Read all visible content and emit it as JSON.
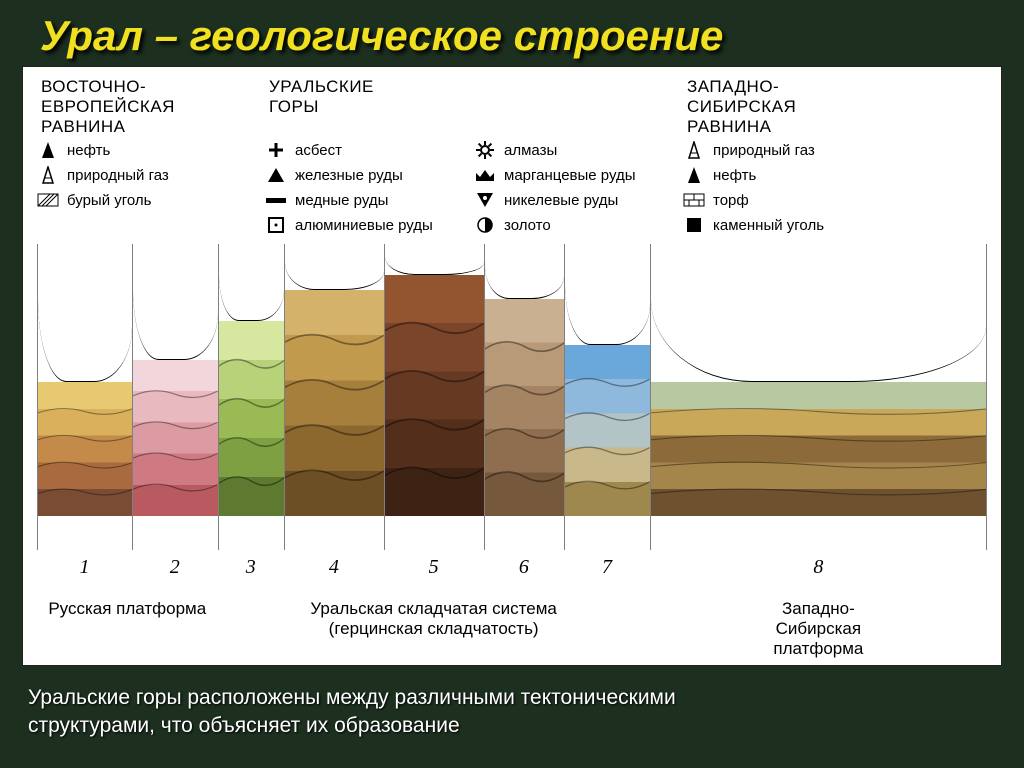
{
  "title": "Урал – геологическое строение",
  "headers": {
    "left": "ВОСТОЧНО-\nЕВРОПЕЙСКАЯ\nРАВНИНА",
    "center": "УРАЛЬСКИЕ\nГОРЫ",
    "right": "ЗАПАДНО-\nСИБИРСКАЯ\nРАВНИНА"
  },
  "legend": {
    "col1": [
      {
        "icon": "oil-drop",
        "label": "нефть"
      },
      {
        "icon": "gas-tower",
        "label": "природный газ"
      },
      {
        "icon": "hatched-sq",
        "label": "бурый уголь"
      }
    ],
    "col2": [
      {
        "icon": "plus",
        "label": "асбест"
      },
      {
        "icon": "solid-tri",
        "label": "железные руды"
      },
      {
        "icon": "bar",
        "label": "медные руды"
      },
      {
        "icon": "open-sq",
        "label": "алюминиевые руды"
      }
    ],
    "col3": [
      {
        "icon": "gear",
        "label": "алмазы"
      },
      {
        "icon": "crown",
        "label": "марганцевые руды"
      },
      {
        "icon": "down-tri",
        "label": "никелевые руды"
      },
      {
        "icon": "half-circle",
        "label": "золото"
      }
    ],
    "col4": [
      {
        "icon": "gas-tower",
        "label": "природный газ"
      },
      {
        "icon": "oil-drop",
        "label": "нефть"
      },
      {
        "icon": "bricks",
        "label": "торф"
      },
      {
        "icon": "solid-sq",
        "label": "каменный уголь"
      }
    ]
  },
  "sections": [
    {
      "id": 1,
      "width_pct": 10,
      "top_pct": 45,
      "colors": [
        "#e7c972",
        "#d9b05b",
        "#c48a4a",
        "#a86a3e",
        "#7a4c33"
      ]
    },
    {
      "id": 2,
      "width_pct": 9,
      "top_pct": 38,
      "colors": [
        "#f2d6db",
        "#e8b9bf",
        "#dc9aa2",
        "#cf7a83",
        "#b85a60"
      ]
    },
    {
      "id": 3,
      "width_pct": 7,
      "top_pct": 25,
      "colors": [
        "#d6e8a0",
        "#b8d27a",
        "#99ba55",
        "#7ea042",
        "#5d7a30"
      ]
    },
    {
      "id": 4,
      "width_pct": 10.5,
      "top_pct": 15,
      "colors": [
        "#d4b26a",
        "#c19a4e",
        "#a77f3c",
        "#8c682f",
        "#6c4f24"
      ]
    },
    {
      "id": 5,
      "width_pct": 10.5,
      "top_pct": 10,
      "colors": [
        "#93552f",
        "#7a4528",
        "#663922",
        "#522e1b",
        "#3e2314"
      ]
    },
    {
      "id": 6,
      "width_pct": 8.5,
      "top_pct": 18,
      "colors": [
        "#c9b090",
        "#b89a78",
        "#a58463",
        "#8f6e4f",
        "#76583d"
      ]
    },
    {
      "id": 7,
      "width_pct": 9,
      "top_pct": 33,
      "colors": [
        "#6aa8dc",
        "#8fb8dd",
        "#b2c4c6",
        "#c8b88a",
        "#9e884e"
      ]
    },
    {
      "id": 8,
      "width_pct": 35.5,
      "top_pct": 45,
      "colors": [
        "#b8c8a0",
        "#c9a85a",
        "#8c6a3a",
        "#a4864a",
        "#6e5230"
      ]
    }
  ],
  "numbers": [
    "1",
    "2",
    "3",
    "4",
    "5",
    "6",
    "7",
    "8"
  ],
  "platforms": {
    "left": {
      "text": "Русская платформа",
      "span_pct": 19
    },
    "center": {
      "text": "Уральская складчатая система",
      "sub": "(герцинская складчатость)",
      "span_pct": 45.5
    },
    "right": {
      "text": "Западно-Сибирская платформа",
      "span_pct": 35.5
    }
  },
  "caption_l1": "Уральские горы расположены между различными тектоническими",
  "caption_l2": "структурами,   что объясняет  их образование",
  "styling": {
    "bg_color": "#1d3020",
    "title_color": "#f0e020",
    "panel_bg": "#ffffff",
    "caption_color": "#ffffff",
    "num_font": "Times New Roman, italic"
  }
}
